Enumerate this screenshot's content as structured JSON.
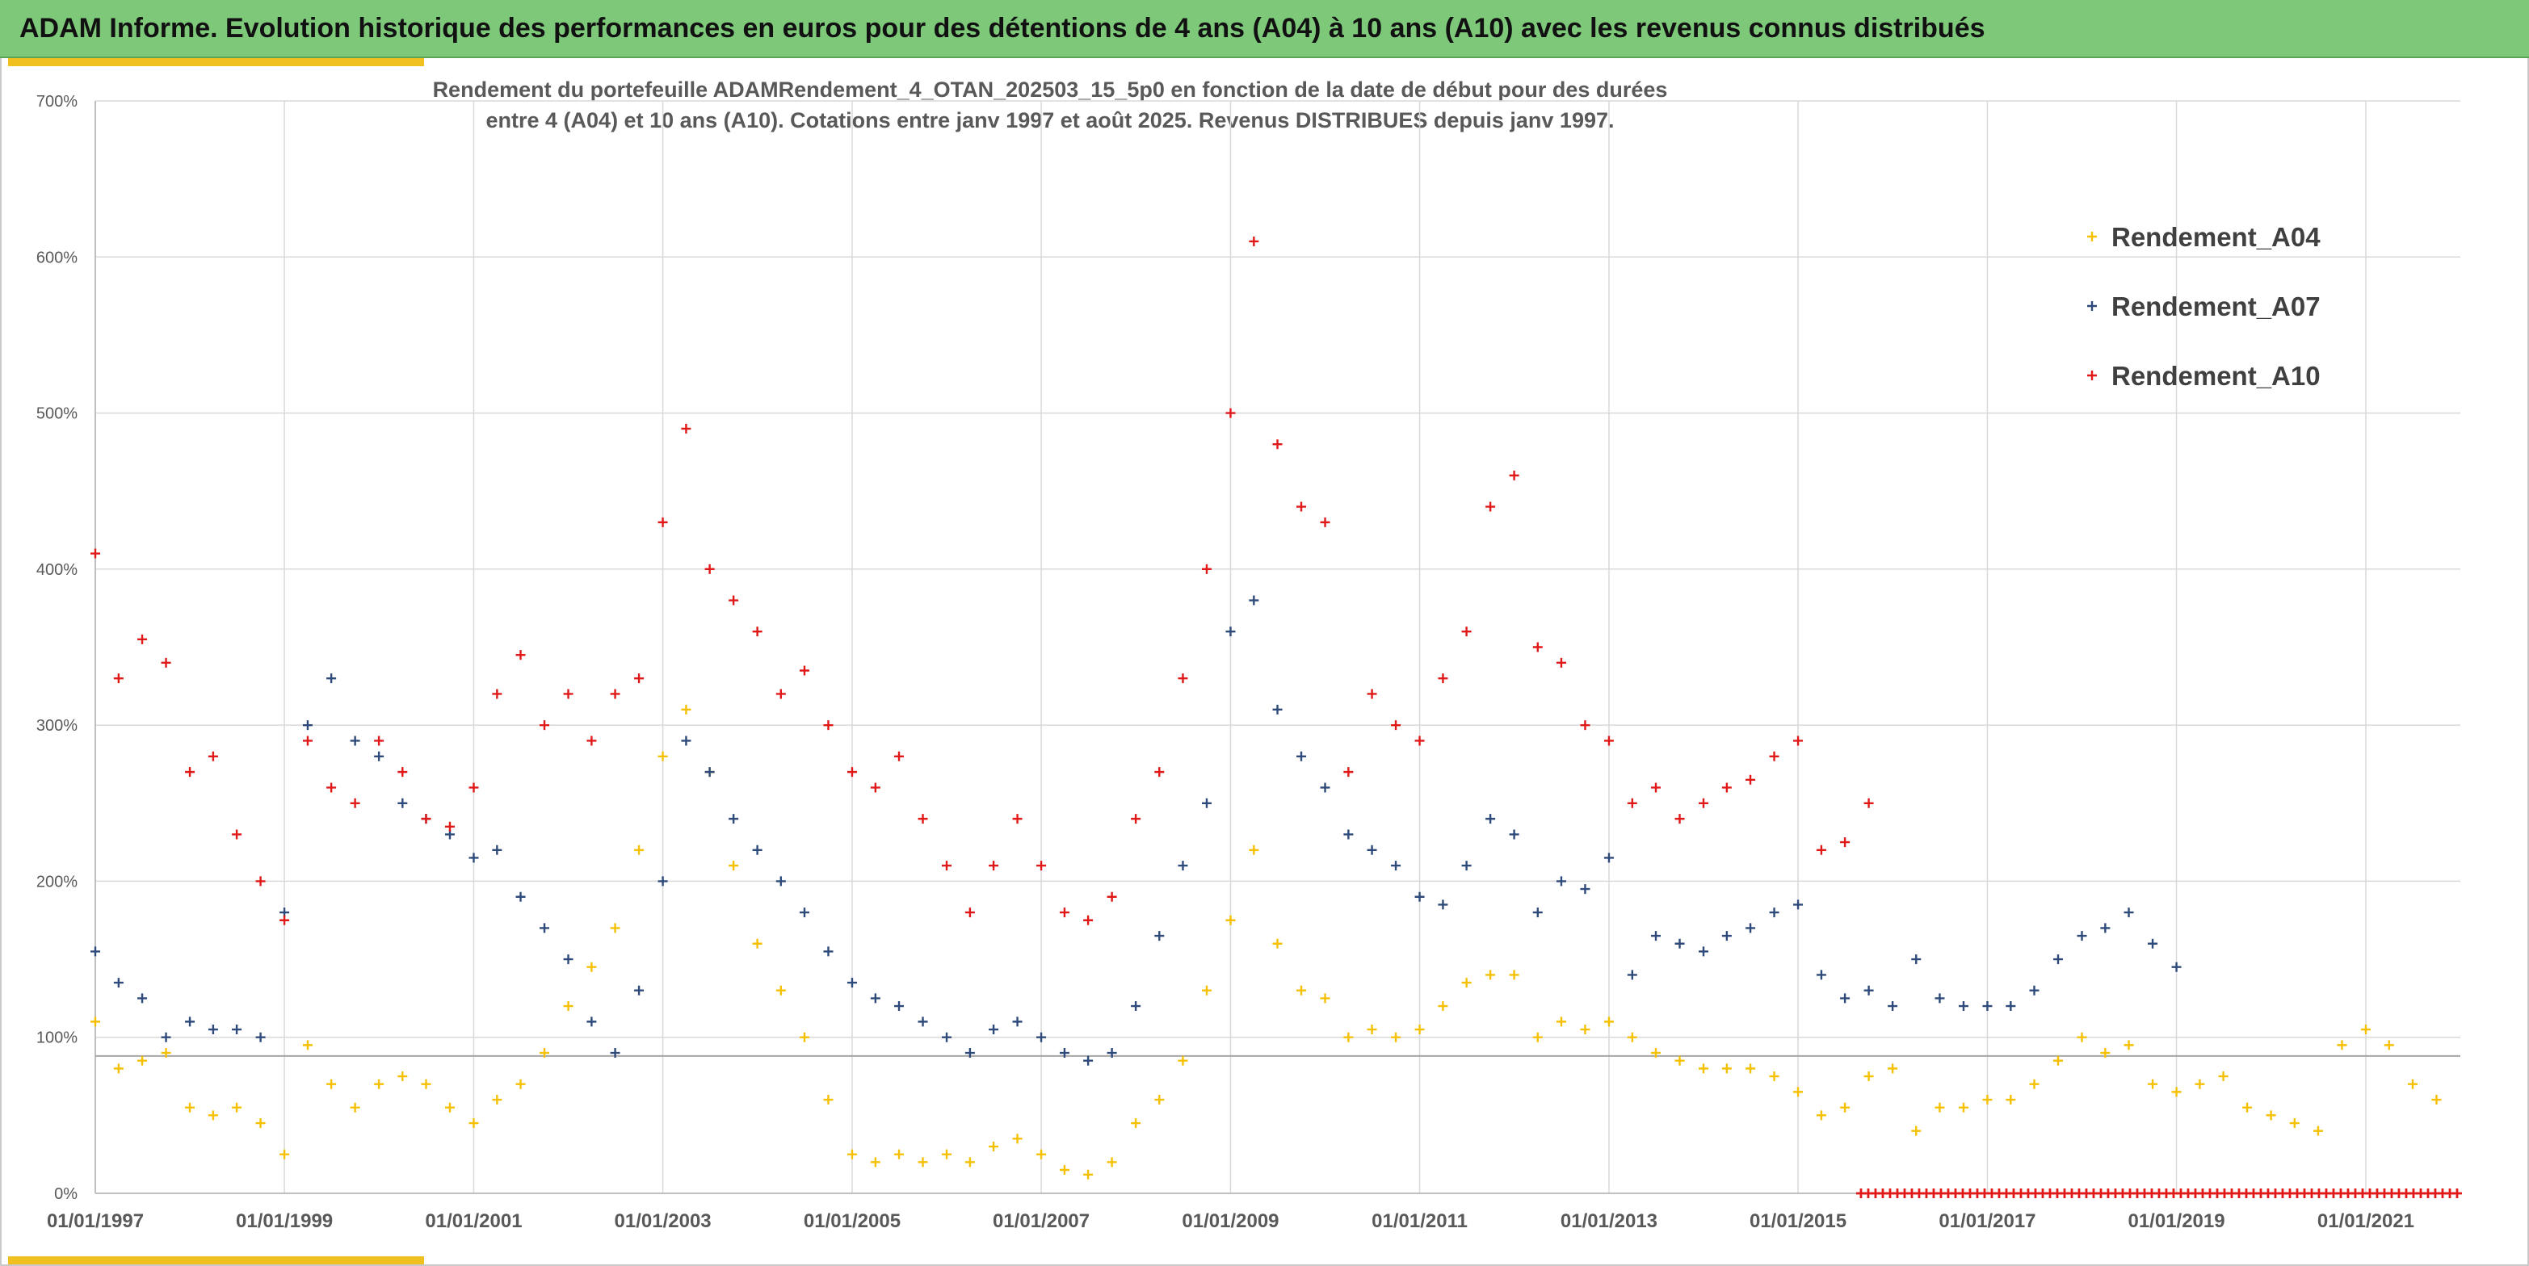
{
  "header": {
    "title": "ADAM Informe. Evolution historique des performances en euros pour des détentions de 4 ans (A04) à 10 ans (A10) avec les revenus connus distribués"
  },
  "chart_data": {
    "type": "scatter",
    "title_line1": "Rendement du portefeuille ADAMRendement_4_OTAN_202503_15_5p0  en fonction de la date de début pour des durées",
    "title_line2": "entre 4 (A04) et 10 ans (A10). Cotations entre janv 1997 et août 2025. Revenus DISTRIBUES depuis janv 1997.",
    "xlabel": "",
    "ylabel": "",
    "x_ticks": [
      "01/01/1997",
      "01/01/1999",
      "01/01/2001",
      "01/01/2003",
      "01/01/2005",
      "01/01/2007",
      "01/01/2009",
      "01/01/2011",
      "01/01/2013",
      "01/01/2015",
      "01/01/2017",
      "01/01/2019",
      "01/01/2021"
    ],
    "y_ticks": [
      "0%",
      "100%",
      "200%",
      "300%",
      "400%",
      "500%",
      "600%",
      "700%"
    ],
    "xlim": [
      "01/01/1997",
      "01/01/2022"
    ],
    "ylim": [
      0,
      700
    ],
    "reference_line": 88,
    "grid": true,
    "legend_position": "top-right",
    "series": [
      {
        "name": "Rendement_A04",
        "color": "#f5c000",
        "points": [
          [
            "01/01/1997",
            110
          ],
          [
            "01/04/1997",
            80
          ],
          [
            "01/07/1997",
            85
          ],
          [
            "01/10/1997",
            90
          ],
          [
            "01/01/1998",
            55
          ],
          [
            "01/04/1998",
            50
          ],
          [
            "01/07/1998",
            55
          ],
          [
            "01/10/1998",
            45
          ],
          [
            "01/01/1999",
            25
          ],
          [
            "01/04/1999",
            95
          ],
          [
            "01/07/1999",
            70
          ],
          [
            "01/10/1999",
            55
          ],
          [
            "01/01/2000",
            70
          ],
          [
            "01/04/2000",
            75
          ],
          [
            "01/07/2000",
            70
          ],
          [
            "01/10/2000",
            55
          ],
          [
            "01/01/2001",
            45
          ],
          [
            "01/04/2001",
            60
          ],
          [
            "01/07/2001",
            70
          ],
          [
            "01/10/2001",
            90
          ],
          [
            "01/01/2002",
            120
          ],
          [
            "01/04/2002",
            145
          ],
          [
            "01/07/2002",
            170
          ],
          [
            "01/10/2002",
            220
          ],
          [
            "01/01/2003",
            280
          ],
          [
            "01/04/2003",
            310
          ],
          [
            "01/07/2003",
            270
          ],
          [
            "01/10/2003",
            210
          ],
          [
            "01/01/2004",
            160
          ],
          [
            "01/04/2004",
            130
          ],
          [
            "01/07/2004",
            100
          ],
          [
            "01/10/2004",
            60
          ],
          [
            "01/01/2005",
            25
          ],
          [
            "01/04/2005",
            20
          ],
          [
            "01/07/2005",
            25
          ],
          [
            "01/10/2005",
            20
          ],
          [
            "01/01/2006",
            25
          ],
          [
            "01/04/2006",
            20
          ],
          [
            "01/07/2006",
            30
          ],
          [
            "01/10/2006",
            35
          ],
          [
            "01/01/2007",
            25
          ],
          [
            "01/04/2007",
            15
          ],
          [
            "01/07/2007",
            12
          ],
          [
            "01/10/2007",
            20
          ],
          [
            "01/01/2008",
            45
          ],
          [
            "01/04/2008",
            60
          ],
          [
            "01/07/2008",
            85
          ],
          [
            "01/10/2008",
            130
          ],
          [
            "01/01/2009",
            175
          ],
          [
            "01/04/2009",
            220
          ],
          [
            "01/07/2009",
            160
          ],
          [
            "01/10/2009",
            130
          ],
          [
            "01/01/2010",
            125
          ],
          [
            "01/04/2010",
            100
          ],
          [
            "01/07/2010",
            105
          ],
          [
            "01/10/2010",
            100
          ],
          [
            "01/01/2011",
            105
          ],
          [
            "01/04/2011",
            120
          ],
          [
            "01/07/2011",
            135
          ],
          [
            "01/10/2011",
            140
          ],
          [
            "01/01/2012",
            140
          ],
          [
            "01/04/2012",
            100
          ],
          [
            "01/07/2012",
            110
          ],
          [
            "01/10/2012",
            105
          ],
          [
            "01/01/2013",
            110
          ],
          [
            "01/04/2013",
            100
          ],
          [
            "01/07/2013",
            90
          ],
          [
            "01/10/2013",
            85
          ],
          [
            "01/01/2014",
            80
          ],
          [
            "01/04/2014",
            80
          ],
          [
            "01/07/2014",
            80
          ],
          [
            "01/10/2014",
            75
          ],
          [
            "01/01/2015",
            65
          ],
          [
            "01/04/2015",
            50
          ],
          [
            "01/07/2015",
            55
          ],
          [
            "01/10/2015",
            75
          ],
          [
            "01/01/2016",
            80
          ],
          [
            "01/04/2016",
            40
          ],
          [
            "01/07/2016",
            55
          ],
          [
            "01/10/2016",
            55
          ],
          [
            "01/01/2017",
            60
          ],
          [
            "01/04/2017",
            60
          ],
          [
            "01/07/2017",
            70
          ],
          [
            "01/10/2017",
            85
          ],
          [
            "01/01/2018",
            100
          ],
          [
            "01/04/2018",
            90
          ],
          [
            "01/07/2018",
            95
          ],
          [
            "01/10/2018",
            70
          ],
          [
            "01/01/2019",
            65
          ],
          [
            "01/04/2019",
            70
          ],
          [
            "01/07/2019",
            75
          ],
          [
            "01/10/2019",
            55
          ],
          [
            "01/01/2020",
            50
          ],
          [
            "01/04/2020",
            45
          ],
          [
            "01/07/2020",
            40
          ],
          [
            "01/10/2020",
            95
          ],
          [
            "01/01/2021",
            105
          ],
          [
            "01/04/2021",
            95
          ],
          [
            "01/07/2021",
            70
          ],
          [
            "01/10/2021",
            60
          ]
        ]
      },
      {
        "name": "Rendement_A07",
        "color": "#2e4a7a",
        "points": [
          [
            "01/01/1997",
            155
          ],
          [
            "01/04/1997",
            135
          ],
          [
            "01/07/1997",
            125
          ],
          [
            "01/10/1997",
            100
          ],
          [
            "01/01/1998",
            110
          ],
          [
            "01/04/1998",
            105
          ],
          [
            "01/07/1998",
            105
          ],
          [
            "01/10/1998",
            100
          ],
          [
            "01/01/1999",
            180
          ],
          [
            "01/04/1999",
            300
          ],
          [
            "01/07/1999",
            330
          ],
          [
            "01/10/1999",
            290
          ],
          [
            "01/01/2000",
            280
          ],
          [
            "01/04/2000",
            250
          ],
          [
            "01/07/2000",
            240
          ],
          [
            "01/10/2000",
            230
          ],
          [
            "01/01/2001",
            215
          ],
          [
            "01/04/2001",
            220
          ],
          [
            "01/07/2001",
            190
          ],
          [
            "01/10/2001",
            170
          ],
          [
            "01/01/2002",
            150
          ],
          [
            "01/04/2002",
            110
          ],
          [
            "01/07/2002",
            90
          ],
          [
            "01/10/2002",
            130
          ],
          [
            "01/01/2003",
            200
          ],
          [
            "01/04/2003",
            290
          ],
          [
            "01/07/2003",
            270
          ],
          [
            "01/10/2003",
            240
          ],
          [
            "01/01/2004",
            220
          ],
          [
            "01/04/2004",
            200
          ],
          [
            "01/07/2004",
            180
          ],
          [
            "01/10/2004",
            155
          ],
          [
            "01/01/2005",
            135
          ],
          [
            "01/04/2005",
            125
          ],
          [
            "01/07/2005",
            120
          ],
          [
            "01/10/2005",
            110
          ],
          [
            "01/01/2006",
            100
          ],
          [
            "01/04/2006",
            90
          ],
          [
            "01/07/2006",
            105
          ],
          [
            "01/10/2006",
            110
          ],
          [
            "01/01/2007",
            100
          ],
          [
            "01/04/2007",
            90
          ],
          [
            "01/07/2007",
            85
          ],
          [
            "01/10/2007",
            90
          ],
          [
            "01/01/2008",
            120
          ],
          [
            "01/04/2008",
            165
          ],
          [
            "01/07/2008",
            210
          ],
          [
            "01/10/2008",
            250
          ],
          [
            "01/01/2009",
            360
          ],
          [
            "01/04/2009",
            380
          ],
          [
            "01/07/2009",
            310
          ],
          [
            "01/10/2009",
            280
          ],
          [
            "01/01/2010",
            260
          ],
          [
            "01/04/2010",
            230
          ],
          [
            "01/07/2010",
            220
          ],
          [
            "01/10/2010",
            210
          ],
          [
            "01/01/2011",
            190
          ],
          [
            "01/04/2011",
            185
          ],
          [
            "01/07/2011",
            210
          ],
          [
            "01/10/2011",
            240
          ],
          [
            "01/01/2012",
            230
          ],
          [
            "01/04/2012",
            180
          ],
          [
            "01/07/2012",
            200
          ],
          [
            "01/10/2012",
            195
          ],
          [
            "01/01/2013",
            215
          ],
          [
            "01/04/2013",
            140
          ],
          [
            "01/07/2013",
            165
          ],
          [
            "01/10/2013",
            160
          ],
          [
            "01/01/2014",
            155
          ],
          [
            "01/04/2014",
            165
          ],
          [
            "01/07/2014",
            170
          ],
          [
            "01/10/2014",
            180
          ],
          [
            "01/01/2015",
            185
          ],
          [
            "01/04/2015",
            140
          ],
          [
            "01/07/2015",
            125
          ],
          [
            "01/10/2015",
            130
          ],
          [
            "01/01/2016",
            120
          ],
          [
            "01/04/2016",
            150
          ],
          [
            "01/07/2016",
            125
          ],
          [
            "01/10/2016",
            120
          ],
          [
            "01/01/2017",
            120
          ],
          [
            "01/04/2017",
            120
          ],
          [
            "01/07/2017",
            130
          ],
          [
            "01/10/2017",
            150
          ],
          [
            "01/01/2018",
            165
          ],
          [
            "01/04/2018",
            170
          ],
          [
            "01/07/2018",
            180
          ],
          [
            "01/10/2018",
            160
          ],
          [
            "01/01/2019",
            145
          ]
        ]
      },
      {
        "name": "Rendement_A10",
        "color": "#e01818",
        "points": [
          [
            "01/01/1997",
            410
          ],
          [
            "01/04/1997",
            330
          ],
          [
            "01/07/1997",
            355
          ],
          [
            "01/10/1997",
            340
          ],
          [
            "01/01/1998",
            270
          ],
          [
            "01/04/1998",
            280
          ],
          [
            "01/07/1998",
            230
          ],
          [
            "01/10/1998",
            200
          ],
          [
            "01/01/1999",
            175
          ],
          [
            "01/04/1999",
            290
          ],
          [
            "01/07/1999",
            260
          ],
          [
            "01/10/1999",
            250
          ],
          [
            "01/01/2000",
            290
          ],
          [
            "01/04/2000",
            270
          ],
          [
            "01/07/2000",
            240
          ],
          [
            "01/10/2000",
            235
          ],
          [
            "01/01/2001",
            260
          ],
          [
            "01/04/2001",
            320
          ],
          [
            "01/07/2001",
            345
          ],
          [
            "01/10/2001",
            300
          ],
          [
            "01/01/2002",
            320
          ],
          [
            "01/04/2002",
            290
          ],
          [
            "01/07/2002",
            320
          ],
          [
            "01/10/2002",
            330
          ],
          [
            "01/01/2003",
            430
          ],
          [
            "01/04/2003",
            490
          ],
          [
            "01/07/2003",
            400
          ],
          [
            "01/10/2003",
            380
          ],
          [
            "01/01/2004",
            360
          ],
          [
            "01/04/2004",
            320
          ],
          [
            "01/07/2004",
            335
          ],
          [
            "01/10/2004",
            300
          ],
          [
            "01/01/2005",
            270
          ],
          [
            "01/04/2005",
            260
          ],
          [
            "01/07/2005",
            280
          ],
          [
            "01/10/2005",
            240
          ],
          [
            "01/01/2006",
            210
          ],
          [
            "01/04/2006",
            180
          ],
          [
            "01/07/2006",
            210
          ],
          [
            "01/10/2006",
            240
          ],
          [
            "01/01/2007",
            210
          ],
          [
            "01/04/2007",
            180
          ],
          [
            "01/07/2007",
            175
          ],
          [
            "01/10/2007",
            190
          ],
          [
            "01/01/2008",
            240
          ],
          [
            "01/04/2008",
            270
          ],
          [
            "01/07/2008",
            330
          ],
          [
            "01/10/2008",
            400
          ],
          [
            "01/01/2009",
            500
          ],
          [
            "01/04/2009",
            610
          ],
          [
            "01/07/2009",
            480
          ],
          [
            "01/10/2009",
            440
          ],
          [
            "01/01/2010",
            430
          ],
          [
            "01/04/2010",
            270
          ],
          [
            "01/07/2010",
            320
          ],
          [
            "01/10/2010",
            300
          ],
          [
            "01/01/2011",
            290
          ],
          [
            "01/04/2011",
            330
          ],
          [
            "01/07/2011",
            360
          ],
          [
            "01/10/2011",
            440
          ],
          [
            "01/01/2012",
            460
          ],
          [
            "01/04/2012",
            350
          ],
          [
            "01/07/2012",
            340
          ],
          [
            "01/10/2012",
            300
          ],
          [
            "01/01/2013",
            290
          ],
          [
            "01/04/2013",
            250
          ],
          [
            "01/07/2013",
            260
          ],
          [
            "01/10/2013",
            240
          ],
          [
            "01/01/2014",
            250
          ],
          [
            "01/04/2014",
            260
          ],
          [
            "01/07/2014",
            265
          ],
          [
            "01/10/2014",
            280
          ],
          [
            "01/01/2015",
            290
          ],
          [
            "01/04/2015",
            220
          ],
          [
            "01/07/2015",
            225
          ],
          [
            "01/10/2015",
            250
          ]
        ],
        "zero_run": {
          "from": "01/09/2015",
          "to": "01/01/2022",
          "value": 0
        }
      }
    ]
  }
}
